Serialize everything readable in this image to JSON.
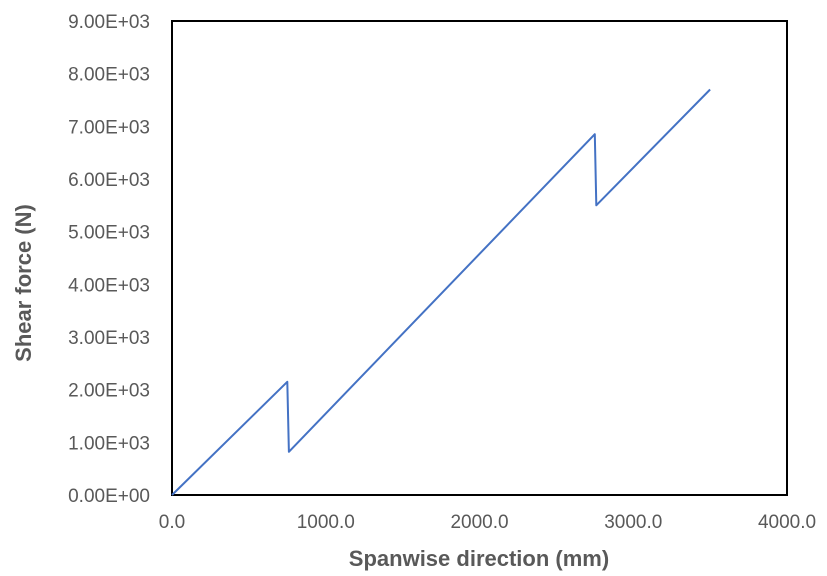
{
  "chart_data": {
    "type": "line",
    "title": "",
    "xlabel": "Spanwise direction (mm)",
    "ylabel": "Shear force (N)",
    "xlim": [
      0,
      4000
    ],
    "ylim": [
      0,
      9000
    ],
    "x_ticks": [
      "0.0",
      "1000.0",
      "2000.0",
      "3000.0",
      "4000.0"
    ],
    "y_ticks": [
      "0.00E+00",
      "1.00E+03",
      "2.00E+03",
      "3.00E+03",
      "4.00E+03",
      "5.00E+03",
      "6.00E+03",
      "7.00E+03",
      "8.00E+03",
      "9.00E+03"
    ],
    "grid": false,
    "legend": "none",
    "colors": {
      "line": "#4472c4",
      "frame": "#000000",
      "text": "#595959"
    },
    "series": [
      {
        "x": [
          0,
          750,
          760,
          2750,
          2760,
          3500
        ],
        "y": [
          0,
          2150,
          820,
          6850,
          5500,
          7700
        ]
      }
    ]
  }
}
